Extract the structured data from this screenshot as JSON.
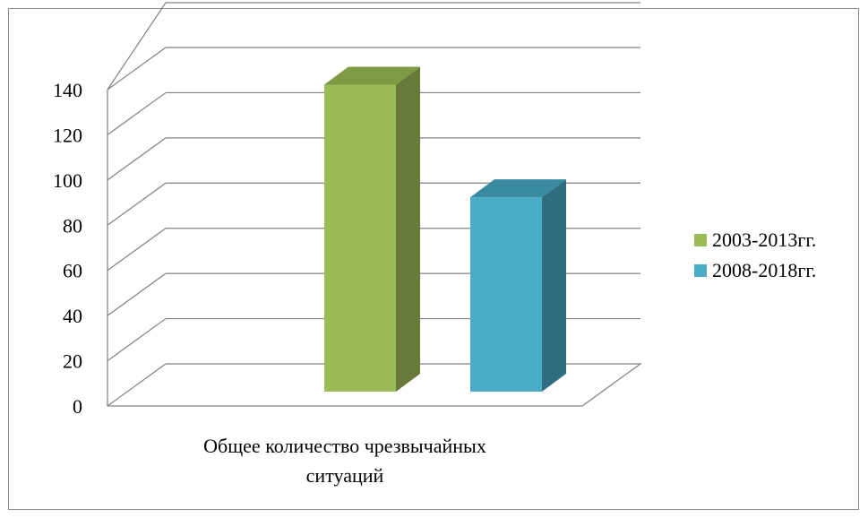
{
  "chart_data": {
    "type": "bar",
    "three_d": true,
    "categories": [
      "Общее количество чрезвычайных ситуаций"
    ],
    "category_label_lines": [
      "Общее количество чрезвычайных",
      "ситуаций"
    ],
    "series": [
      {
        "name": "2003-2013гг.",
        "values": [
          139
        ],
        "color": "#9bbb59",
        "side_color": "#677a3a",
        "top_color": "#7e9a45"
      },
      {
        "name": "2008-2018гг.",
        "values": [
          88
        ],
        "color": "#4bacc6",
        "side_color": "#2f6e80",
        "top_color": "#3a8aa0"
      }
    ],
    "ylim": [
      0,
      140
    ],
    "yticks": [
      0,
      20,
      40,
      60,
      80,
      100,
      120,
      140
    ],
    "grid": true,
    "legend_position": "right",
    "title": "",
    "xlabel": "",
    "ylabel": ""
  }
}
